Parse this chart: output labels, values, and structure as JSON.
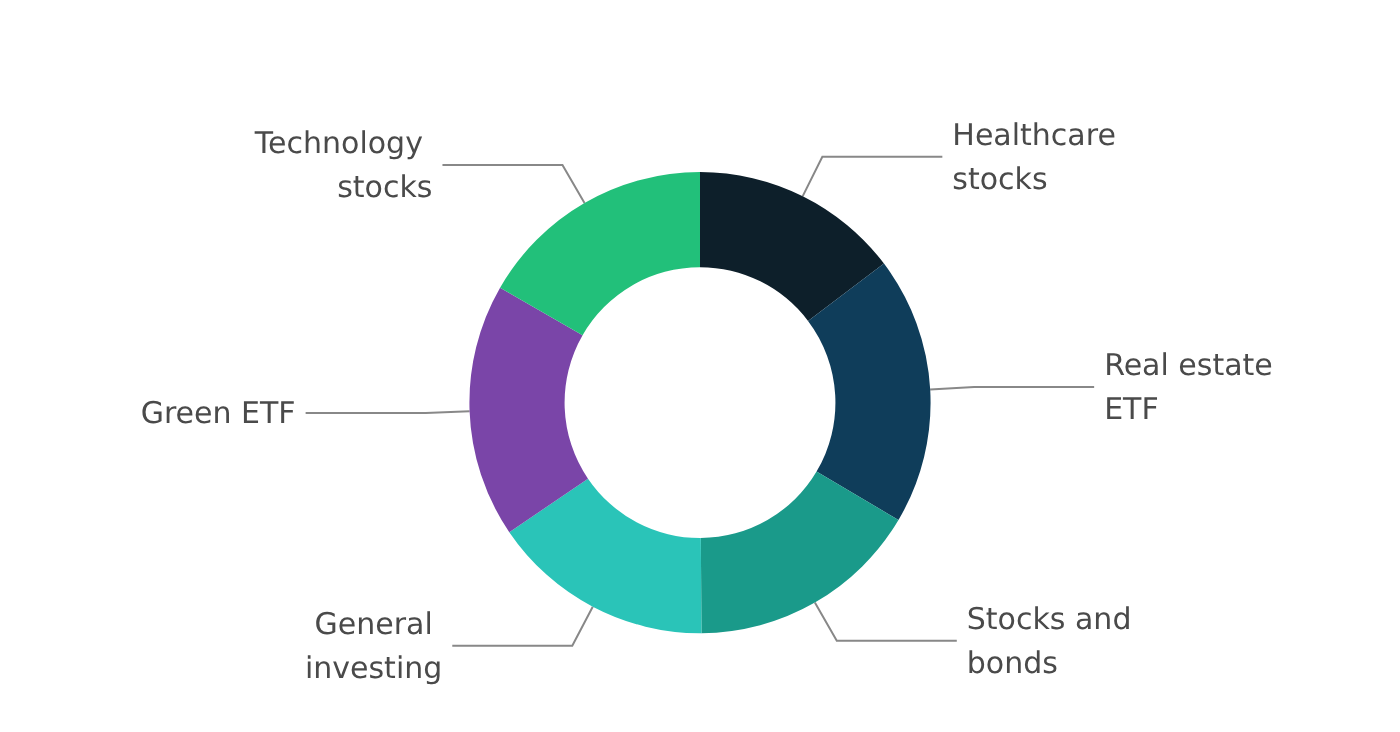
{
  "chart_data": {
    "type": "donut",
    "legend": false,
    "categories": [
      "Healthcare stocks",
      "Real estate ETF",
      "Stocks and bonds",
      "General investing",
      "Green ETF",
      "Technology stocks"
    ],
    "values": [
      14.7,
      18.8,
      16.4,
      15.6,
      17.8,
      16.7
    ],
    "colors": [
      "#0d1f2a",
      "#0f3d5a",
      "#1a9a8a",
      "#2ac4b8",
      "#7a45a8",
      "#22c07a"
    ]
  }
}
